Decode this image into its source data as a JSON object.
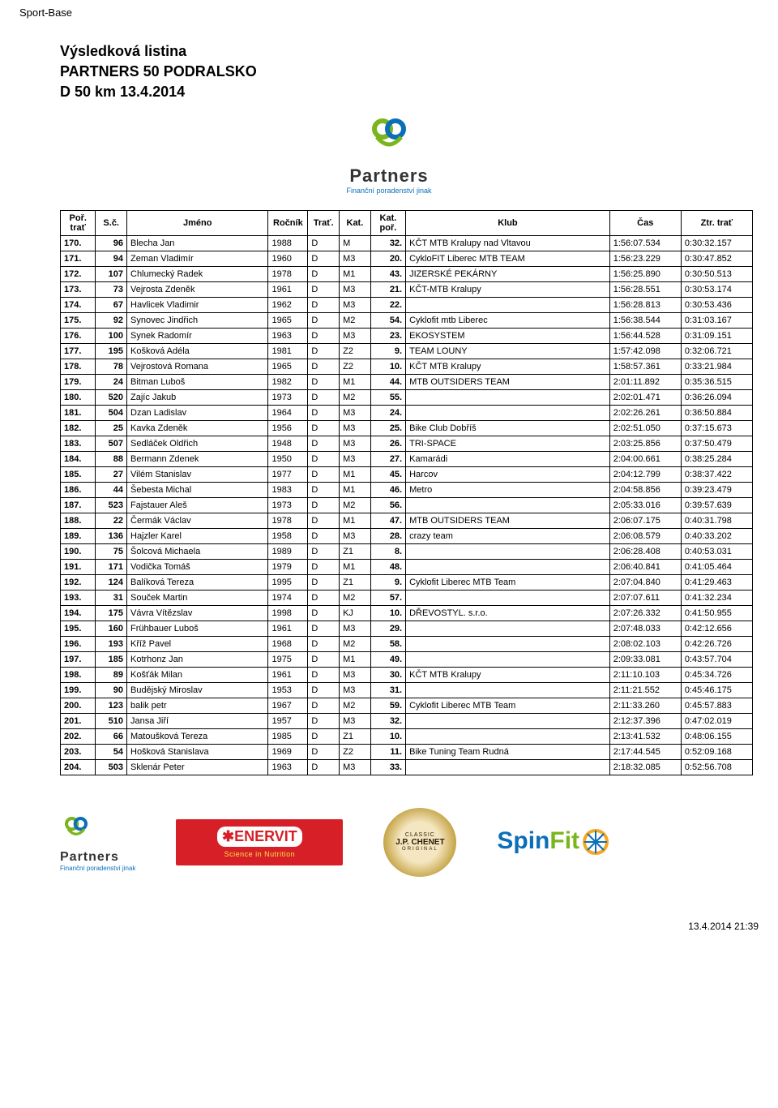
{
  "site_title": "Sport-Base",
  "header": {
    "line1": "Výsledková listina",
    "line2": "PARTNERS 50 PODRALSKO",
    "line3": "D 50 km 13.4.2014"
  },
  "partners_logo": {
    "word": "Partners",
    "tagline": "Finanční poradenství jinak"
  },
  "columns": [
    "Poř. trať",
    "S.č.",
    "Jméno",
    "Ročník",
    "Trať.",
    "Kat.",
    "Kat. poř.",
    "Klub",
    "Čas",
    "Ztr. trať"
  ],
  "rows": [
    {
      "por": "170.",
      "sc": "96",
      "jmeno": "Blecha Jan",
      "rocnik": "1988",
      "trat": "D",
      "kat": "M",
      "kp": "32.",
      "klub": "KČT MTB Kralupy nad Vltavou",
      "cas": "1:56:07.534",
      "ztr": "0:30:32.157"
    },
    {
      "por": "171.",
      "sc": "94",
      "jmeno": "Zeman Vladimír",
      "rocnik": "1960",
      "trat": "D",
      "kat": "M3",
      "kp": "20.",
      "klub": "CykloFIT Liberec MTB TEAM",
      "cas": "1:56:23.229",
      "ztr": "0:30:47.852"
    },
    {
      "por": "172.",
      "sc": "107",
      "jmeno": "Chlumecký Radek",
      "rocnik": "1978",
      "trat": "D",
      "kat": "M1",
      "kp": "43.",
      "klub": "JIZERSKÉ PEKÁRNY",
      "cas": "1:56:25.890",
      "ztr": "0:30:50.513"
    },
    {
      "por": "173.",
      "sc": "73",
      "jmeno": "Vejrosta Zdeněk",
      "rocnik": "1961",
      "trat": "D",
      "kat": "M3",
      "kp": "21.",
      "klub": "KČT-MTB Kralupy",
      "cas": "1:56:28.551",
      "ztr": "0:30:53.174"
    },
    {
      "por": "174.",
      "sc": "67",
      "jmeno": "Havlicek Vladimir",
      "rocnik": "1962",
      "trat": "D",
      "kat": "M3",
      "kp": "22.",
      "klub": "",
      "cas": "1:56:28.813",
      "ztr": "0:30:53.436"
    },
    {
      "por": "175.",
      "sc": "92",
      "jmeno": "Synovec Jindřich",
      "rocnik": "1965",
      "trat": "D",
      "kat": "M2",
      "kp": "54.",
      "klub": "Cyklofit mtb Liberec",
      "cas": "1:56:38.544",
      "ztr": "0:31:03.167"
    },
    {
      "por": "176.",
      "sc": "100",
      "jmeno": "Synek Radomír",
      "rocnik": "1963",
      "trat": "D",
      "kat": "M3",
      "kp": "23.",
      "klub": "EKOSYSTEM",
      "cas": "1:56:44.528",
      "ztr": "0:31:09.151"
    },
    {
      "por": "177.",
      "sc": "195",
      "jmeno": "Košková Adéla",
      "rocnik": "1981",
      "trat": "D",
      "kat": "Z2",
      "kp": "9.",
      "klub": "TEAM LOUNY",
      "cas": "1:57:42.098",
      "ztr": "0:32:06.721"
    },
    {
      "por": "178.",
      "sc": "78",
      "jmeno": "Vejrostová Romana",
      "rocnik": "1965",
      "trat": "D",
      "kat": "Z2",
      "kp": "10.",
      "klub": "KČT MTB Kralupy",
      "cas": "1:58:57.361",
      "ztr": "0:33:21.984"
    },
    {
      "por": "179.",
      "sc": "24",
      "jmeno": "Bitman Luboš",
      "rocnik": "1982",
      "trat": "D",
      "kat": "M1",
      "kp": "44.",
      "klub": "MTB OUTSIDERS TEAM",
      "cas": "2:01:11.892",
      "ztr": "0:35:36.515"
    },
    {
      "por": "180.",
      "sc": "520",
      "jmeno": "Zajíc Jakub",
      "rocnik": "1973",
      "trat": "D",
      "kat": "M2",
      "kp": "55.",
      "klub": "",
      "cas": "2:02:01.471",
      "ztr": "0:36:26.094"
    },
    {
      "por": "181.",
      "sc": "504",
      "jmeno": "Dzan Ladislav",
      "rocnik": "1964",
      "trat": "D",
      "kat": "M3",
      "kp": "24.",
      "klub": "",
      "cas": "2:02:26.261",
      "ztr": "0:36:50.884"
    },
    {
      "por": "182.",
      "sc": "25",
      "jmeno": "Kavka Zdeněk",
      "rocnik": "1956",
      "trat": "D",
      "kat": "M3",
      "kp": "25.",
      "klub": "Bike Club Dobříš",
      "cas": "2:02:51.050",
      "ztr": "0:37:15.673"
    },
    {
      "por": "183.",
      "sc": "507",
      "jmeno": "Sedláček Oldřich",
      "rocnik": "1948",
      "trat": "D",
      "kat": "M3",
      "kp": "26.",
      "klub": "TRI-SPACE",
      "cas": "2:03:25.856",
      "ztr": "0:37:50.479"
    },
    {
      "por": "184.",
      "sc": "88",
      "jmeno": "Bermann Zdenek",
      "rocnik": "1950",
      "trat": "D",
      "kat": "M3",
      "kp": "27.",
      "klub": "Kamarádi",
      "cas": "2:04:00.661",
      "ztr": "0:38:25.284"
    },
    {
      "por": "185.",
      "sc": "27",
      "jmeno": "Vilém Stanislav",
      "rocnik": "1977",
      "trat": "D",
      "kat": "M1",
      "kp": "45.",
      "klub": "Harcov",
      "cas": "2:04:12.799",
      "ztr": "0:38:37.422"
    },
    {
      "por": "186.",
      "sc": "44",
      "jmeno": "Šebesta Michal",
      "rocnik": "1983",
      "trat": "D",
      "kat": "M1",
      "kp": "46.",
      "klub": "Metro",
      "cas": "2:04:58.856",
      "ztr": "0:39:23.479"
    },
    {
      "por": "187.",
      "sc": "523",
      "jmeno": "Fajstauer Aleš",
      "rocnik": "1973",
      "trat": "D",
      "kat": "M2",
      "kp": "56.",
      "klub": "",
      "cas": "2:05:33.016",
      "ztr": "0:39:57.639"
    },
    {
      "por": "188.",
      "sc": "22",
      "jmeno": "Čermák Václav",
      "rocnik": "1978",
      "trat": "D",
      "kat": "M1",
      "kp": "47.",
      "klub": "MTB OUTSIDERS TEAM",
      "cas": "2:06:07.175",
      "ztr": "0:40:31.798"
    },
    {
      "por": "189.",
      "sc": "136",
      "jmeno": "Hajzler Karel",
      "rocnik": "1958",
      "trat": "D",
      "kat": "M3",
      "kp": "28.",
      "klub": "crazy team",
      "cas": "2:06:08.579",
      "ztr": "0:40:33.202"
    },
    {
      "por": "190.",
      "sc": "75",
      "jmeno": "Šolcová Michaela",
      "rocnik": "1989",
      "trat": "D",
      "kat": "Z1",
      "kp": "8.",
      "klub": "",
      "cas": "2:06:28.408",
      "ztr": "0:40:53.031"
    },
    {
      "por": "191.",
      "sc": "171",
      "jmeno": "Vodička Tomáš",
      "rocnik": "1979",
      "trat": "D",
      "kat": "M1",
      "kp": "48.",
      "klub": "",
      "cas": "2:06:40.841",
      "ztr": "0:41:05.464"
    },
    {
      "por": "192.",
      "sc": "124",
      "jmeno": "Balíková Tereza",
      "rocnik": "1995",
      "trat": "D",
      "kat": "Z1",
      "kp": "9.",
      "klub": "Cyklofit Liberec MTB Team",
      "cas": "2:07:04.840",
      "ztr": "0:41:29.463"
    },
    {
      "por": "193.",
      "sc": "31",
      "jmeno": "Souček Martin",
      "rocnik": "1974",
      "trat": "D",
      "kat": "M2",
      "kp": "57.",
      "klub": "",
      "cas": "2:07:07.611",
      "ztr": "0:41:32.234"
    },
    {
      "por": "194.",
      "sc": "175",
      "jmeno": "Vávra Vítězslav",
      "rocnik": "1998",
      "trat": "D",
      "kat": "KJ",
      "kp": "10.",
      "klub": "DŘEVOSTYL. s.r.o.",
      "cas": "2:07:26.332",
      "ztr": "0:41:50.955"
    },
    {
      "por": "195.",
      "sc": "160",
      "jmeno": "Frühbauer Luboš",
      "rocnik": "1961",
      "trat": "D",
      "kat": "M3",
      "kp": "29.",
      "klub": "",
      "cas": "2:07:48.033",
      "ztr": "0:42:12.656"
    },
    {
      "por": "196.",
      "sc": "193",
      "jmeno": "Kříž Pavel",
      "rocnik": "1968",
      "trat": "D",
      "kat": "M2",
      "kp": "58.",
      "klub": "",
      "cas": "2:08:02.103",
      "ztr": "0:42:26.726"
    },
    {
      "por": "197.",
      "sc": "185",
      "jmeno": "Kotrhonz Jan",
      "rocnik": "1975",
      "trat": "D",
      "kat": "M1",
      "kp": "49.",
      "klub": "",
      "cas": "2:09:33.081",
      "ztr": "0:43:57.704"
    },
    {
      "por": "198.",
      "sc": "89",
      "jmeno": "Košťák Milan",
      "rocnik": "1961",
      "trat": "D",
      "kat": "M3",
      "kp": "30.",
      "klub": "KČT MTB Kralupy",
      "cas": "2:11:10.103",
      "ztr": "0:45:34.726"
    },
    {
      "por": "199.",
      "sc": "90",
      "jmeno": "Budějský Miroslav",
      "rocnik": "1953",
      "trat": "D",
      "kat": "M3",
      "kp": "31.",
      "klub": "",
      "cas": "2:11:21.552",
      "ztr": "0:45:46.175"
    },
    {
      "por": "200.",
      "sc": "123",
      "jmeno": "balik petr",
      "rocnik": "1967",
      "trat": "D",
      "kat": "M2",
      "kp": "59.",
      "klub": "Cyklofit Liberec MTB Team",
      "cas": "2:11:33.260",
      "ztr": "0:45:57.883"
    },
    {
      "por": "201.",
      "sc": "510",
      "jmeno": "Jansa Jiří",
      "rocnik": "1957",
      "trat": "D",
      "kat": "M3",
      "kp": "32.",
      "klub": "",
      "cas": "2:12:37.396",
      "ztr": "0:47:02.019"
    },
    {
      "por": "202.",
      "sc": "66",
      "jmeno": "Matoušková Tereza",
      "rocnik": "1985",
      "trat": "D",
      "kat": "Z1",
      "kp": "10.",
      "klub": "",
      "cas": "2:13:41.532",
      "ztr": "0:48:06.155"
    },
    {
      "por": "203.",
      "sc": "54",
      "jmeno": "Hošková Stanislava",
      "rocnik": "1969",
      "trat": "D",
      "kat": "Z2",
      "kp": "11.",
      "klub": "Bike Tuning Team Rudná",
      "cas": "2:17:44.545",
      "ztr": "0:52:09.168"
    },
    {
      "por": "204.",
      "sc": "503",
      "jmeno": "Sklenár Peter",
      "rocnik": "1963",
      "trat": "D",
      "kat": "M3",
      "kp": "33.",
      "klub": "",
      "cas": "2:18:32.085",
      "ztr": "0:52:56.708"
    }
  ],
  "sponsors": {
    "enervit": {
      "brand": "✱ENERVIT",
      "sub": "Science in Nutrition"
    },
    "chenet": {
      "top": "CLASSIC",
      "mid": "J.P. CHENET",
      "bot": "ORIGINAL"
    },
    "spinfit": {
      "spin": "Spin",
      "fit": "Fit"
    }
  },
  "footer_ts": "13.4.2014 21:39"
}
